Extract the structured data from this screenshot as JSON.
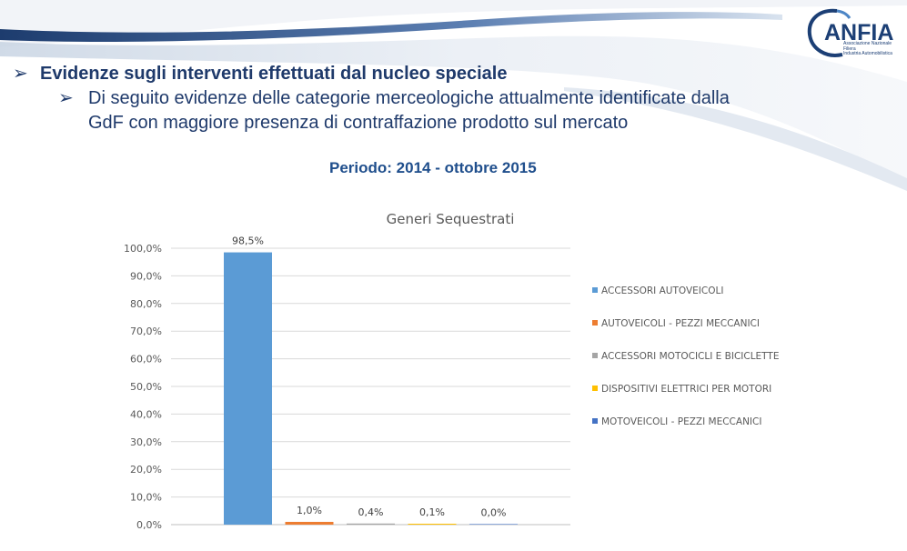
{
  "logo": {
    "name": "ANFIA",
    "subtitle": [
      "Associazione Nazionale",
      "Filiera",
      "Industria Automobilistica"
    ]
  },
  "bullets": {
    "main": "Evidenze sugli interventi effettuati dal nucleo speciale",
    "sub_line1": "Di seguito evidenze delle categorie merceologiche attualmente identificate dalla",
    "sub_line2": "GdF con maggiore presenza di contraffazione prodotto sul mercato",
    "arrow_glyph": "➢"
  },
  "period": "Periodo: 2014 - ottobre 2015",
  "colors": {
    "title_blue": "#1f3a6b",
    "accent_blue": "#1f4e8c",
    "series": [
      "#5b9bd5",
      "#ed7d31",
      "#a5a5a5",
      "#ffc000",
      "#4472c4"
    ]
  },
  "chart_data": {
    "type": "bar",
    "title": "Generi Sequestrati",
    "categories": [
      "ACCESSORI AUTOVEICOLI",
      "AUTOVEICOLI - PEZZI MECCANICI",
      "ACCESSORI MOTOCICLI E BICICLETTE",
      "DISPOSITIVI ELETTRICI PER MOTORI",
      "MOTOVEICOLI - PEZZI MECCANICI"
    ],
    "values": [
      98.5,
      1.0,
      0.4,
      0.1,
      0.0
    ],
    "data_labels": [
      "98,5%",
      "1,0%",
      "0,4%",
      "0,1%",
      "0,0%"
    ],
    "ylim": [
      0,
      100
    ],
    "yticks": [
      "0,0%",
      "10,0%",
      "20,0%",
      "30,0%",
      "40,0%",
      "50,0%",
      "60,0%",
      "70,0%",
      "80,0%",
      "90,0%",
      "100,0%"
    ],
    "grid": true,
    "legend": "right"
  }
}
